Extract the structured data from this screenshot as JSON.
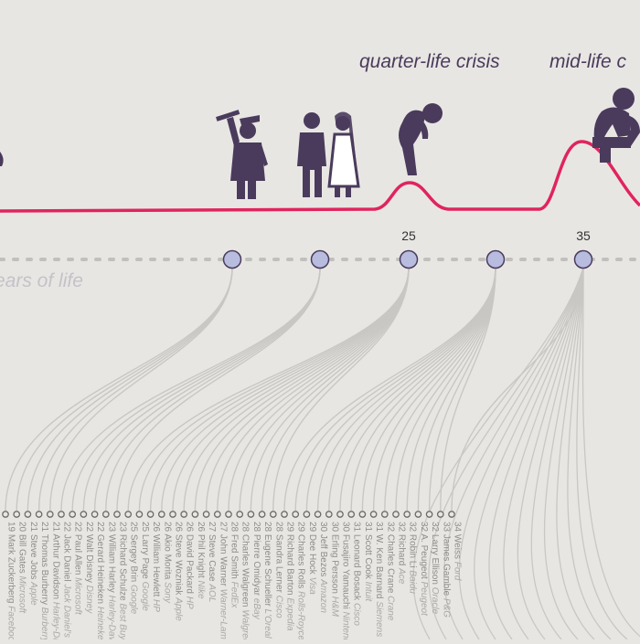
{
  "crises": [
    {
      "label": "quarter-life crisis"
    },
    {
      "label": "mid-life c"
    }
  ],
  "axis": {
    "caption": "ears of life",
    "milestones": [
      {
        "age": "",
        "icon": "graduate-icon"
      },
      {
        "age": "",
        "icon": "wedding-couple-icon"
      },
      {
        "age": "25",
        "icon": "slumped-person-icon"
      },
      {
        "age": "",
        "icon": ""
      },
      {
        "age": "35",
        "icon": "thinking-person-icon"
      }
    ]
  },
  "colors": {
    "background": "#e8e6e3",
    "curve": "#e0245e",
    "node_fill": "#b8bcdf",
    "node_stroke": "#4a3b5c",
    "icon": "#4a3b5c",
    "lines": "#c9c7c4"
  },
  "founders": [
    {
      "age": "19",
      "name": "Mark Zuckerberg",
      "company": "Facebook"
    },
    {
      "age": "20",
      "name": "Bill Gates",
      "company": "Microsoft"
    },
    {
      "age": "21",
      "name": "Steve Jobs",
      "company": "Apple"
    },
    {
      "age": "21",
      "name": "Thomas Burberry",
      "company": "Burberry"
    },
    {
      "age": "21",
      "name": "Arthur Davidson",
      "company": "Harley-Davidson"
    },
    {
      "age": "22",
      "name": "Jack Daniel",
      "company": "Jack Daniel's"
    },
    {
      "age": "22",
      "name": "Paul Allen",
      "company": "Microsoft"
    },
    {
      "age": "22",
      "name": "Walt Disney",
      "company": "Disney"
    },
    {
      "age": "22",
      "name": "Gerard Heineken",
      "company": "Heineken"
    },
    {
      "age": "23",
      "name": "William Harley",
      "company": "Harley-Davidson"
    },
    {
      "age": "23",
      "name": "Richard Schulze",
      "company": "Best Buy"
    },
    {
      "age": "25",
      "name": "Sergey Brin",
      "company": "Google"
    },
    {
      "age": "25",
      "name": "Larry Page",
      "company": "Google"
    },
    {
      "age": "26",
      "name": "William Hewlett",
      "company": "HP"
    },
    {
      "age": "26",
      "name": "Akio Morita",
      "company": "Sony"
    },
    {
      "age": "26",
      "name": "Steve Wozniak",
      "company": "Apple"
    },
    {
      "age": "26",
      "name": "David Packard",
      "company": "HP"
    },
    {
      "age": "26",
      "name": "Phil Knight",
      "company": "Nike"
    },
    {
      "age": "27",
      "name": "Steve Case",
      "company": "AOL"
    },
    {
      "age": "27",
      "name": "John Warner",
      "company": "Warner-Lambert"
    },
    {
      "age": "28",
      "name": "Fred Smith",
      "company": "FedEx"
    },
    {
      "age": "28",
      "name": "Charles Walgreen",
      "company": "Walgreens"
    },
    {
      "age": "28",
      "name": "Pierre Omidyar",
      "company": "eBay"
    },
    {
      "age": "28",
      "name": "Eugene Schueller",
      "company": "L'Oreal"
    },
    {
      "age": "28",
      "name": "Sandra Lerner",
      "company": "Cisco"
    },
    {
      "age": "29",
      "name": "Richard Barton",
      "company": "Expedia"
    },
    {
      "age": "29",
      "name": "Charles Rolls",
      "company": "Rolls-Royce"
    },
    {
      "age": "29",
      "name": "Dee Hock",
      "company": "Visa"
    },
    {
      "age": "30",
      "name": "Jeff Bezos",
      "company": "Amazon"
    },
    {
      "age": "30",
      "name": "Erling Persson",
      "company": "H&M"
    },
    {
      "age": "30",
      "name": "Fusajiro Yamauchi",
      "company": "Nintendo"
    },
    {
      "age": "31",
      "name": "Leonard Bosack",
      "company": "Cisco"
    },
    {
      "age": "31",
      "name": "Scott Cook",
      "company": "Intuit"
    },
    {
      "age": "31",
      "name": "W. Ken Barnard",
      "company": "Siemens"
    },
    {
      "age": "32",
      "name": "Charles Crane",
      "company": "Crane"
    },
    {
      "age": "32",
      "name": "Richard",
      "company": "Ace"
    },
    {
      "age": "32",
      "name": "Robin Li",
      "company": "Baidu"
    },
    {
      "age": "32",
      "name": "A. Peugeot",
      "company": "Peugeot"
    },
    {
      "age": "32",
      "name": "Larry Ellison",
      "company": "Oracle"
    },
    {
      "age": "33",
      "name": "James Gamble",
      "company": "P&G"
    },
    {
      "age": "34",
      "name": "Weiss",
      "company": "Ford"
    }
  ]
}
